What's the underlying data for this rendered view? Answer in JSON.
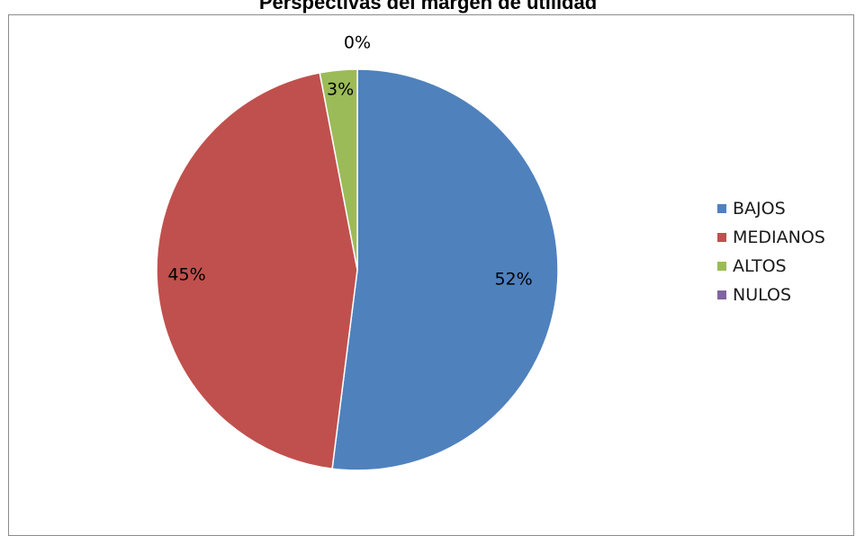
{
  "chart_data": {
    "type": "pie",
    "title": "Perspectivas del margen de utilidad",
    "categories": [
      "BAJOS",
      "MEDIANOS",
      "ALTOS",
      "NULOS"
    ],
    "values": [
      52,
      45,
      3,
      0
    ],
    "data_labels": [
      "52%",
      "45%",
      "3%",
      "0%"
    ],
    "colors": [
      "#4f81bd",
      "#c0504d",
      "#9bbb59",
      "#8064a2"
    ],
    "legend_position": "right",
    "start_angle_deg": 0,
    "direction": "clockwise"
  }
}
